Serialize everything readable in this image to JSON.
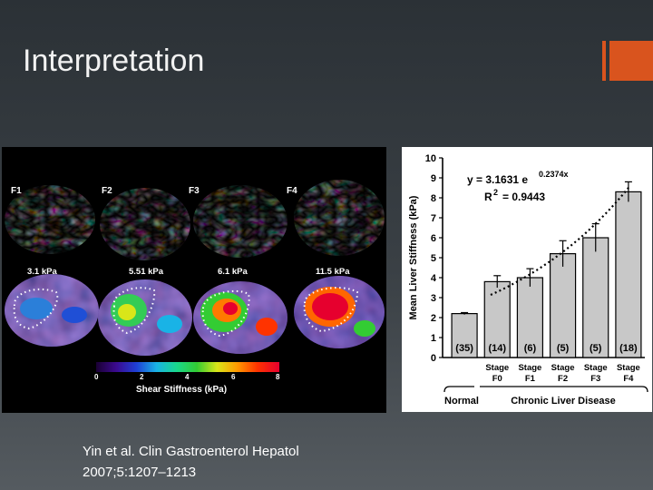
{
  "slide": {
    "title": "Interpretation",
    "accent_color": "#d9541e",
    "citation_line1": "Yin et al. Clin Gastroenterol Hepatol",
    "citation_line2": "2007;5:1207–1213"
  },
  "mre_figure": {
    "stages": [
      "F1",
      "F2",
      "F3",
      "F4"
    ],
    "stiffness_labels": [
      "3.1 kPa",
      "5.51 kPa",
      "6.1 kPa",
      "11.5 kPa"
    ],
    "color_scale": {
      "ticks": [
        "0",
        "2",
        "4",
        "6",
        "8"
      ],
      "title": "Shear Stiffness (kPa)",
      "colors": [
        "#1a0033",
        "#3b0a8f",
        "#1f3fd6",
        "#19b3e6",
        "#19d98c",
        "#33cc33",
        "#d9e619",
        "#ff9900",
        "#ff3300",
        "#e6002e"
      ]
    }
  },
  "chart_data": {
    "type": "bar",
    "ylabel": "Mean Liver Stiffness (kPa)",
    "ylim": [
      0,
      10
    ],
    "yticks": [
      "0",
      "1",
      "2",
      "3",
      "4",
      "5",
      "6",
      "7",
      "8",
      "9",
      "10"
    ],
    "categories": [
      "Normal",
      "Stage F0",
      "Stage F1",
      "Stage F2",
      "Stage F3",
      "Stage F4"
    ],
    "category_lines": [
      [
        "",
        ""
      ],
      [
        "Stage",
        "F0"
      ],
      [
        "Stage",
        "F1"
      ],
      [
        "Stage",
        "F2"
      ],
      [
        "Stage",
        "F3"
      ],
      [
        "Stage",
        "F4"
      ]
    ],
    "values": [
      2.2,
      3.8,
      4.0,
      5.2,
      6.0,
      8.3
    ],
    "errors": [
      0.05,
      0.3,
      0.45,
      0.65,
      0.7,
      0.5
    ],
    "counts": [
      "(35)",
      "(14)",
      "(6)",
      "(5)",
      "(5)",
      "(18)"
    ],
    "bar_color": "#c8c8c8",
    "equation": "y = 3.1631 e",
    "equation_exponent": "0.2374x",
    "r_squared_label": "R",
    "r_squared_exponent": "2",
    "r_squared_value": "= 0.9443",
    "trendline": {
      "a": 3.1631,
      "b": 0.2374
    },
    "group_labels": [
      "Normal",
      "Chronic Liver Disease"
    ]
  }
}
